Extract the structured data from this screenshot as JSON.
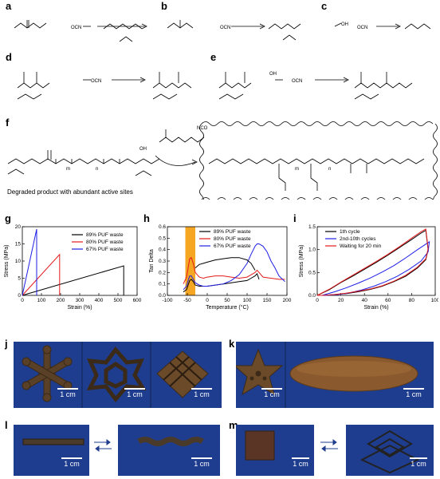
{
  "panels": {
    "a": "a",
    "b": "b",
    "c": "c",
    "d": "d",
    "e": "e",
    "f": "f",
    "g": "g",
    "h": "h",
    "i": "i",
    "j": "j",
    "k": "k",
    "l": "l",
    "m": "m"
  },
  "scheme": {
    "ocn": "OCN",
    "oh": "OH",
    "m": "m",
    "n": "n",
    "nco": "NCO",
    "degraded_caption": "Degraded product with abundant active sites"
  },
  "scale_bar": "1 cm",
  "colors": {
    "black": "#000000",
    "red": "#e41a1c",
    "blue": "#1f1fe6",
    "orange": "#f5a623",
    "photo_bg": "#1f3d8f"
  },
  "chart_data": [
    {
      "type": "line",
      "panel": "g",
      "xlabel": "Strain (%)",
      "ylabel": "Stress (MPa)",
      "xlim": [
        0,
        600
      ],
      "ylim": [
        0,
        20
      ],
      "xticks": [
        "0",
        "100",
        "200",
        "300",
        "400",
        "500",
        "600"
      ],
      "yticks": [
        "0",
        "5",
        "10",
        "15",
        "20"
      ],
      "legend_position": "top-right",
      "series": [
        {
          "name": "89% PUF waste",
          "color": "#000000",
          "x": [
            0,
            530,
            530
          ],
          "y": [
            0,
            8.6,
            0
          ]
        },
        {
          "name": "80% PUF waste",
          "color": "#e41a1c",
          "x": [
            0,
            195,
            195
          ],
          "y": [
            0,
            11.9,
            0
          ]
        },
        {
          "name": "67% PUF waste",
          "color": "#1f1fe6",
          "x": [
            0,
            75,
            75
          ],
          "y": [
            0,
            19.3,
            0
          ]
        }
      ]
    },
    {
      "type": "line",
      "panel": "h",
      "xlabel": "Temperature (°C)",
      "ylabel": "Tan Delta",
      "xlim": [
        -100,
        200
      ],
      "ylim": [
        0.0,
        0.6
      ],
      "xticks": [
        "-100",
        "-50",
        "0",
        "50",
        "100",
        "150",
        "200"
      ],
      "yticks": [
        "0.0",
        "0.1",
        "0.2",
        "0.3",
        "0.4",
        "0.5",
        "0.6"
      ],
      "legend_position": "top-left",
      "highlight_range": [
        -55,
        -30
      ],
      "series": [
        {
          "name": "89% PUF waste",
          "color": "#000000",
          "x": [
            -60,
            -52,
            -47,
            -44,
            -40,
            -35,
            -30,
            -20,
            -10,
            0,
            20,
            40,
            60,
            80,
            100,
            110,
            120,
            125,
            130
          ],
          "y": [
            0.03,
            0.05,
            0.1,
            0.13,
            0.14,
            0.12,
            0.09,
            0.08,
            0.08,
            0.08,
            0.09,
            0.1,
            0.11,
            0.12,
            0.13,
            0.15,
            0.17,
            0.19,
            0.14
          ]
        },
        {
          "name": "80% PUF waste",
          "color": "#e41a1c",
          "x": [
            -60,
            -52,
            -47,
            -44,
            -40,
            -35,
            -30,
            -20,
            -10,
            0,
            20,
            40,
            60,
            80,
            100,
            110,
            120,
            125,
            130,
            140,
            160,
            180,
            195
          ],
          "y": [
            0.1,
            0.16,
            0.26,
            0.32,
            0.33,
            0.28,
            0.2,
            0.16,
            0.15,
            0.16,
            0.17,
            0.17,
            0.16,
            0.15,
            0.16,
            0.18,
            0.2,
            0.22,
            0.2,
            0.16,
            0.15,
            0.14,
            0.14
          ]
        },
        {
          "name": "67% PUF waste",
          "color": "#1f1fe6",
          "x": [
            -60,
            -52,
            -47,
            -44,
            -40,
            -35,
            -30,
            -20,
            -10,
            0,
            20,
            40,
            60,
            80,
            100,
            110,
            120,
            125,
            130,
            140,
            150,
            160,
            170,
            180,
            195
          ],
          "y": [
            0.05,
            0.08,
            0.14,
            0.17,
            0.17,
            0.14,
            0.11,
            0.09,
            0.08,
            0.08,
            0.09,
            0.1,
            0.13,
            0.18,
            0.28,
            0.36,
            0.43,
            0.45,
            0.45,
            0.43,
            0.38,
            0.3,
            0.24,
            0.17,
            0.12
          ]
        },
        {
          "name": "",
          "color": "#000000",
          "x": [
            -30,
            -20,
            -10,
            0,
            20,
            40,
            60,
            80,
            100,
            110,
            120
          ],
          "y": [
            0.24,
            0.27,
            0.28,
            0.29,
            0.31,
            0.32,
            0.33,
            0.33,
            0.31,
            0.28,
            0.22
          ]
        }
      ]
    },
    {
      "type": "line",
      "panel": "i",
      "xlabel": "Strain (%)",
      "ylabel": "Stress (MPa)",
      "xlim": [
        0,
        100
      ],
      "ylim": [
        0,
        1.5
      ],
      "xticks": [
        "0",
        "20",
        "40",
        "60",
        "80",
        "100"
      ],
      "yticks": [
        "0.0",
        "0.5",
        "1.0",
        "1.5"
      ],
      "legend_position": "top-left",
      "series": [
        {
          "name": "1th cycle",
          "color": "#000000",
          "x": [
            0,
            10,
            20,
            30,
            40,
            50,
            60,
            70,
            80,
            88,
            92,
            94,
            92,
            85,
            75,
            65,
            55,
            45,
            35,
            25,
            15,
            5,
            0
          ],
          "y": [
            0,
            0.12,
            0.28,
            0.42,
            0.57,
            0.72,
            0.88,
            1.05,
            1.22,
            1.36,
            1.42,
            1.0,
            0.78,
            0.6,
            0.42,
            0.3,
            0.2,
            0.13,
            0.08,
            0.04,
            0.02,
            0.0,
            0.0
          ]
        },
        {
          "name": "2nd-10th cycles",
          "color": "#1f1fe6",
          "x": [
            4,
            15,
            25,
            35,
            45,
            55,
            65,
            75,
            85,
            92,
            95,
            94,
            88,
            78,
            68,
            58,
            48,
            38,
            28,
            18,
            8,
            4
          ],
          "y": [
            0,
            0.08,
            0.17,
            0.27,
            0.38,
            0.51,
            0.65,
            0.82,
            1.0,
            1.12,
            1.17,
            0.95,
            0.75,
            0.57,
            0.42,
            0.3,
            0.2,
            0.12,
            0.06,
            0.02,
            0.0,
            0.0
          ]
        },
        {
          "name": "Waiting for 20 min",
          "color": "#e41a1c",
          "x": [
            0,
            10,
            20,
            30,
            40,
            50,
            60,
            70,
            80,
            88,
            92,
            94,
            92,
            85,
            75,
            65,
            55,
            45,
            35,
            25,
            15,
            5,
            0
          ],
          "y": [
            0,
            0.13,
            0.29,
            0.44,
            0.59,
            0.74,
            0.9,
            1.07,
            1.25,
            1.39,
            1.45,
            1.02,
            0.8,
            0.62,
            0.44,
            0.31,
            0.21,
            0.14,
            0.09,
            0.05,
            0.02,
            0.0,
            0.0
          ]
        }
      ]
    }
  ]
}
